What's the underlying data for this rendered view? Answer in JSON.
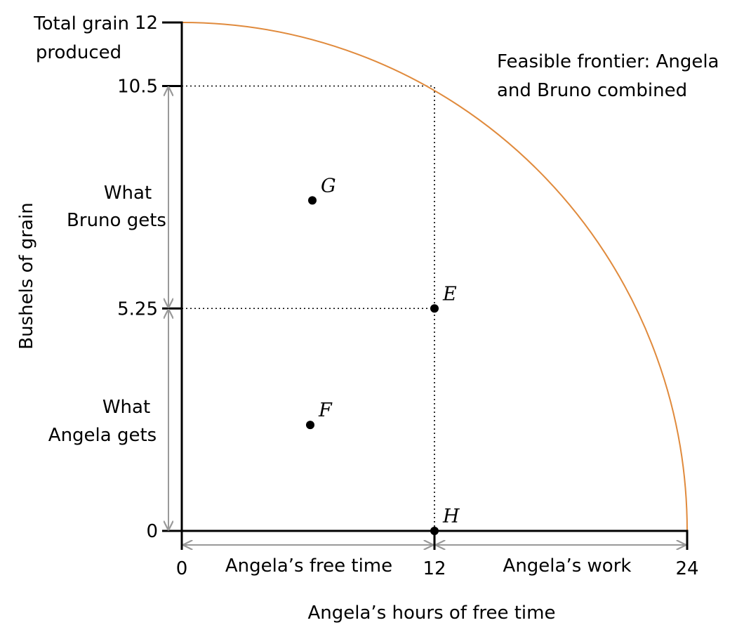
{
  "chart_data": {
    "type": "line",
    "title": "",
    "xlabel": "Angela’s hours of free time",
    "ylabel": "Bushels of grain",
    "xlim": [
      0,
      24
    ],
    "ylim": [
      0,
      12
    ],
    "x_ticks": [
      "0",
      "12",
      "24"
    ],
    "y_ticks": [
      "0",
      "5.25",
      "10.5",
      "12"
    ],
    "y_top_label": [
      "Total grain",
      "produced"
    ],
    "frontier": {
      "label": [
        "Feasible frontier: Angela",
        "and Bruno combined"
      ],
      "color": "#e08a3c",
      "x_intercept": 24,
      "y_intercept": 12
    },
    "points": [
      {
        "label": "G",
        "x": 6.2,
        "y": 7.8
      },
      {
        "label": "E",
        "x": 12,
        "y": 5.25
      },
      {
        "label": "F",
        "x": 6.1,
        "y": 2.5
      },
      {
        "label": "H",
        "x": 12,
        "y": 0
      }
    ],
    "reference_lines": [
      {
        "type": "horizontal",
        "y": 10.5,
        "x_to": 12
      },
      {
        "type": "horizontal",
        "y": 5.25,
        "x_to": 12
      },
      {
        "type": "vertical",
        "x": 12,
        "y_to": 10.5
      }
    ],
    "brackets": {
      "vertical": [
        {
          "label": [
            "What",
            "Bruno gets"
          ],
          "from": 5.25,
          "to": 10.5
        },
        {
          "label": [
            "What",
            "Angela gets"
          ],
          "from": 0,
          "to": 5.25
        }
      ],
      "horizontal": [
        {
          "label": "Angela’s free time",
          "from": 0,
          "to": 12
        },
        {
          "label": "Angela’s work",
          "from": 12,
          "to": 24
        }
      ]
    },
    "arrow_color": "#999999",
    "grid": false,
    "legend": "none"
  }
}
